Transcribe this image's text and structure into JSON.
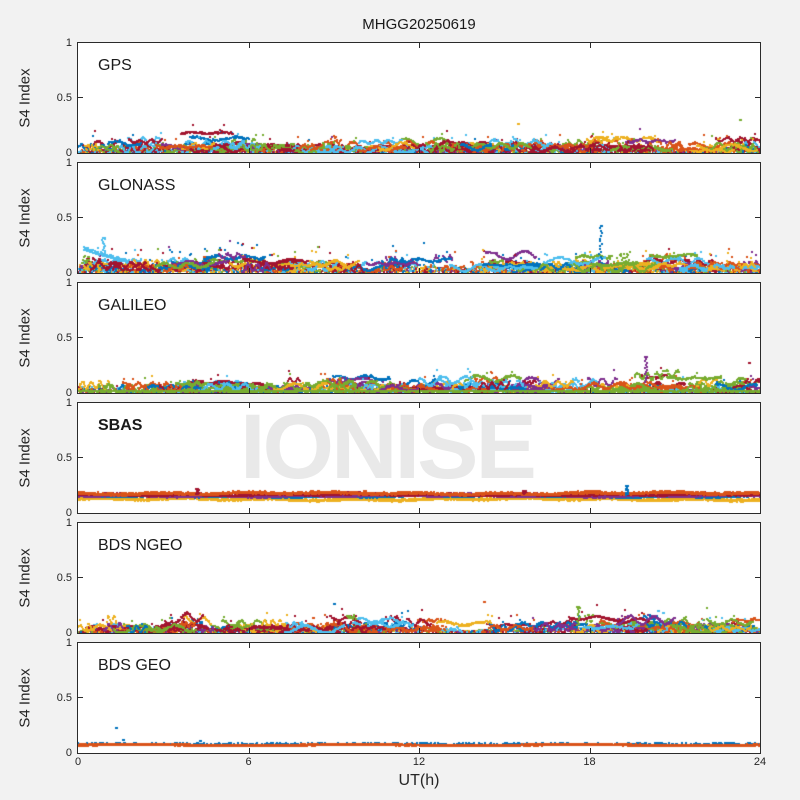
{
  "figure": {
    "background": "#f2f2f2",
    "watermark": {
      "text": "IONISE",
      "color": "#e9e9e9"
    }
  },
  "chart_data": {
    "type": "scatter",
    "title": "MHGG20250619",
    "xlabel": "UT(h)",
    "ylabel": "S4 Index",
    "xlim": [
      0,
      24
    ],
    "ylim": [
      0,
      1
    ],
    "grid": false,
    "xticks": [
      "0",
      "6",
      "12",
      "18",
      "24"
    ],
    "xtick_values": [
      0,
      6,
      12,
      18,
      24
    ],
    "yticks": [
      "0",
      "0.5",
      "1"
    ],
    "ytick_values": [
      0,
      0.5,
      1
    ],
    "axis_color": "#2b2b2b",
    "palette": [
      "#0072BD",
      "#D95319",
      "#EDB120",
      "#7E2F8E",
      "#77AC30",
      "#4DBEEE",
      "#A2142F"
    ],
    "panels": [
      {
        "label": "GPS",
        "label_bold": false,
        "kind": "scatter",
        "seed": 11,
        "base": 0.03,
        "noise": 0.07,
        "spike": 0.11,
        "arcs": 130,
        "carpet": 2600,
        "carpet_level": 0.035,
        "color_weights": [
          1.0,
          1.2,
          0.8,
          0.9,
          1.6,
          1.8,
          2.2
        ],
        "outliers": [
          {
            "t": 23.3,
            "v": 0.3,
            "color": "#77AC30",
            "streak": false
          },
          {
            "t": 15.5,
            "v": 0.26,
            "color": "#EDB120",
            "streak": false
          }
        ]
      },
      {
        "label": "GLONASS",
        "label_bold": false,
        "kind": "scatter",
        "seed": 22,
        "base": 0.04,
        "noise": 0.09,
        "spike": 0.15,
        "arcs": 140,
        "carpet": 2800,
        "carpet_level": 0.05,
        "color_weights": [
          1.4,
          1.6,
          2.4,
          1.0,
          1.2,
          1.6,
          1.2
        ],
        "features": [
          {
            "t0": 0.2,
            "t1": 1.8,
            "level": 0.22,
            "color": "#4DBEEE"
          }
        ],
        "outliers": [
          {
            "t": 18.4,
            "v": 0.43,
            "color": "#0072BD",
            "streak": true,
            "from": 0.1
          },
          {
            "t": 0.9,
            "v": 0.32,
            "color": "#4DBEEE",
            "streak": true,
            "from": 0.15
          }
        ]
      },
      {
        "label": "GALILEO",
        "label_bold": false,
        "kind": "scatter",
        "seed": 33,
        "base": 0.035,
        "noise": 0.075,
        "spike": 0.1,
        "arcs": 130,
        "carpet": 2600,
        "carpet_level": 0.04,
        "color_weights": [
          1.0,
          1.5,
          0.7,
          1.3,
          1.6,
          2.0,
          1.5
        ],
        "baselines": [
          {
            "color": "#77AC30",
            "level": 0.015
          }
        ],
        "outliers": [
          {
            "t": 20.0,
            "v": 0.33,
            "color": "#7E2F8E",
            "streak": true,
            "from": 0.08
          },
          {
            "t": 23.6,
            "v": 0.27,
            "color": "#A2142F",
            "streak": false
          }
        ]
      },
      {
        "label": "SBAS",
        "label_bold": true,
        "kind": "bands",
        "seed": 44,
        "bands": [
          {
            "color": "#EDB120",
            "level": 0.123,
            "jitter": 0.018
          },
          {
            "color": "#0072BD",
            "level": 0.15,
            "jitter": 0.012
          },
          {
            "color": "#7E2F8E",
            "level": 0.155,
            "jitter": 0.015
          },
          {
            "color": "#A2142F",
            "level": 0.165,
            "jitter": 0.014
          },
          {
            "color": "#D95319",
            "level": 0.176,
            "jitter": 0.016
          }
        ],
        "outliers": [
          {
            "t": 4.2,
            "v": 0.22,
            "color": "#A2142F",
            "streak": true,
            "from": 0.17
          },
          {
            "t": 10.1,
            "v": 0.2,
            "color": "#D95319",
            "streak": true,
            "from": 0.17
          },
          {
            "t": 15.7,
            "v": 0.2,
            "color": "#A2142F",
            "streak": true,
            "from": 0.17
          },
          {
            "t": 19.3,
            "v": 0.25,
            "color": "#0072BD",
            "streak": true,
            "from": 0.16
          }
        ]
      },
      {
        "label": "BDS NGEO",
        "label_bold": false,
        "kind": "scatter",
        "seed": 55,
        "base": 0.03,
        "noise": 0.08,
        "spike": 0.11,
        "arcs": 125,
        "carpet": 2400,
        "carpet_level": 0.04,
        "color_weights": [
          1.0,
          1.5,
          0.9,
          1.0,
          1.3,
          1.6,
          2.2
        ],
        "outliers": [
          {
            "t": 14.3,
            "v": 0.28,
            "color": "#D95319",
            "streak": false
          },
          {
            "t": 17.6,
            "v": 0.24,
            "color": "#77AC30",
            "streak": true,
            "from": 0.06
          },
          {
            "t": 20.4,
            "v": 0.2,
            "color": "#4DBEEE",
            "streak": false
          },
          {
            "t": 9.0,
            "v": 0.26,
            "color": "#0072BD",
            "streak": false
          }
        ]
      },
      {
        "label": "BDS GEO",
        "label_bold": false,
        "kind": "geo",
        "seed": 66,
        "line_color": "#D95319",
        "line_level": 0.072,
        "line2_color": "#0072BD",
        "outliers": [
          {
            "t": 1.35,
            "v": 0.23,
            "color": "#0072BD",
            "streak": false
          },
          {
            "t": 1.6,
            "v": 0.115,
            "color": "#0072BD",
            "streak": false
          },
          {
            "t": 4.3,
            "v": 0.105,
            "color": "#0072BD",
            "streak": false
          }
        ]
      }
    ]
  }
}
